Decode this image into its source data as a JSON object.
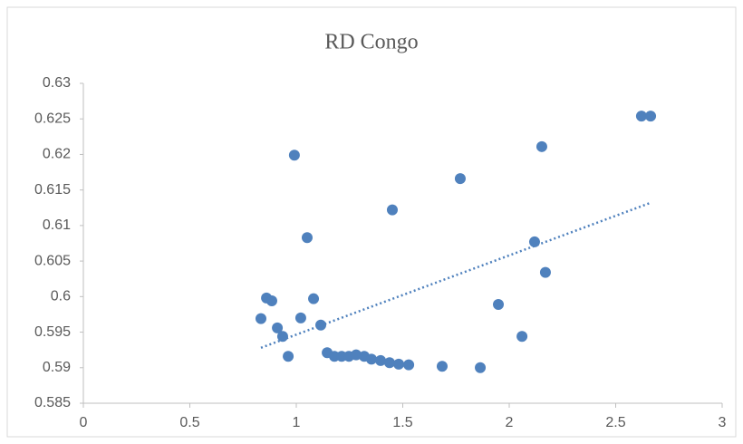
{
  "chart_data": {
    "type": "scatter",
    "title": "RD Congo",
    "x": [
      0.834,
      0.86,
      0.885,
      0.911,
      0.936,
      0.962,
      0.991,
      1.021,
      1.051,
      1.081,
      1.115,
      1.145,
      1.179,
      1.213,
      1.247,
      1.281,
      1.319,
      1.353,
      1.396,
      1.438,
      1.451,
      1.481,
      1.528,
      1.685,
      1.77,
      1.864,
      1.949,
      2.06,
      2.119,
      2.153,
      2.17,
      2.621,
      2.664
    ],
    "y": [
      0.5969,
      0.5998,
      0.5994,
      0.5956,
      0.5944,
      0.5916,
      0.6199,
      0.597,
      0.6083,
      0.5997,
      0.596,
      0.5921,
      0.5916,
      0.5916,
      0.5916,
      0.5918,
      0.5916,
      0.5912,
      0.591,
      0.5907,
      0.6122,
      0.5905,
      0.5904,
      0.5902,
      0.6166,
      0.59,
      0.5989,
      0.5944,
      0.6077,
      0.6211,
      0.6034,
      0.6254,
      0.6254
    ],
    "color": "#4f81bd",
    "trendline": {
      "x": [
        0.834,
        2.664
      ],
      "y": [
        0.5928,
        0.6132
      ],
      "color": "#4f81bd"
    },
    "xlim": [
      0,
      3
    ],
    "xticks": [
      0,
      0.5,
      1,
      1.5,
      2,
      2.5,
      3
    ],
    "ylim": [
      0.585,
      0.63
    ],
    "yticks": [
      0.585,
      0.59,
      0.595,
      0.6,
      0.605,
      0.61,
      0.615,
      0.62,
      0.625,
      0.63
    ],
    "grid": false
  }
}
